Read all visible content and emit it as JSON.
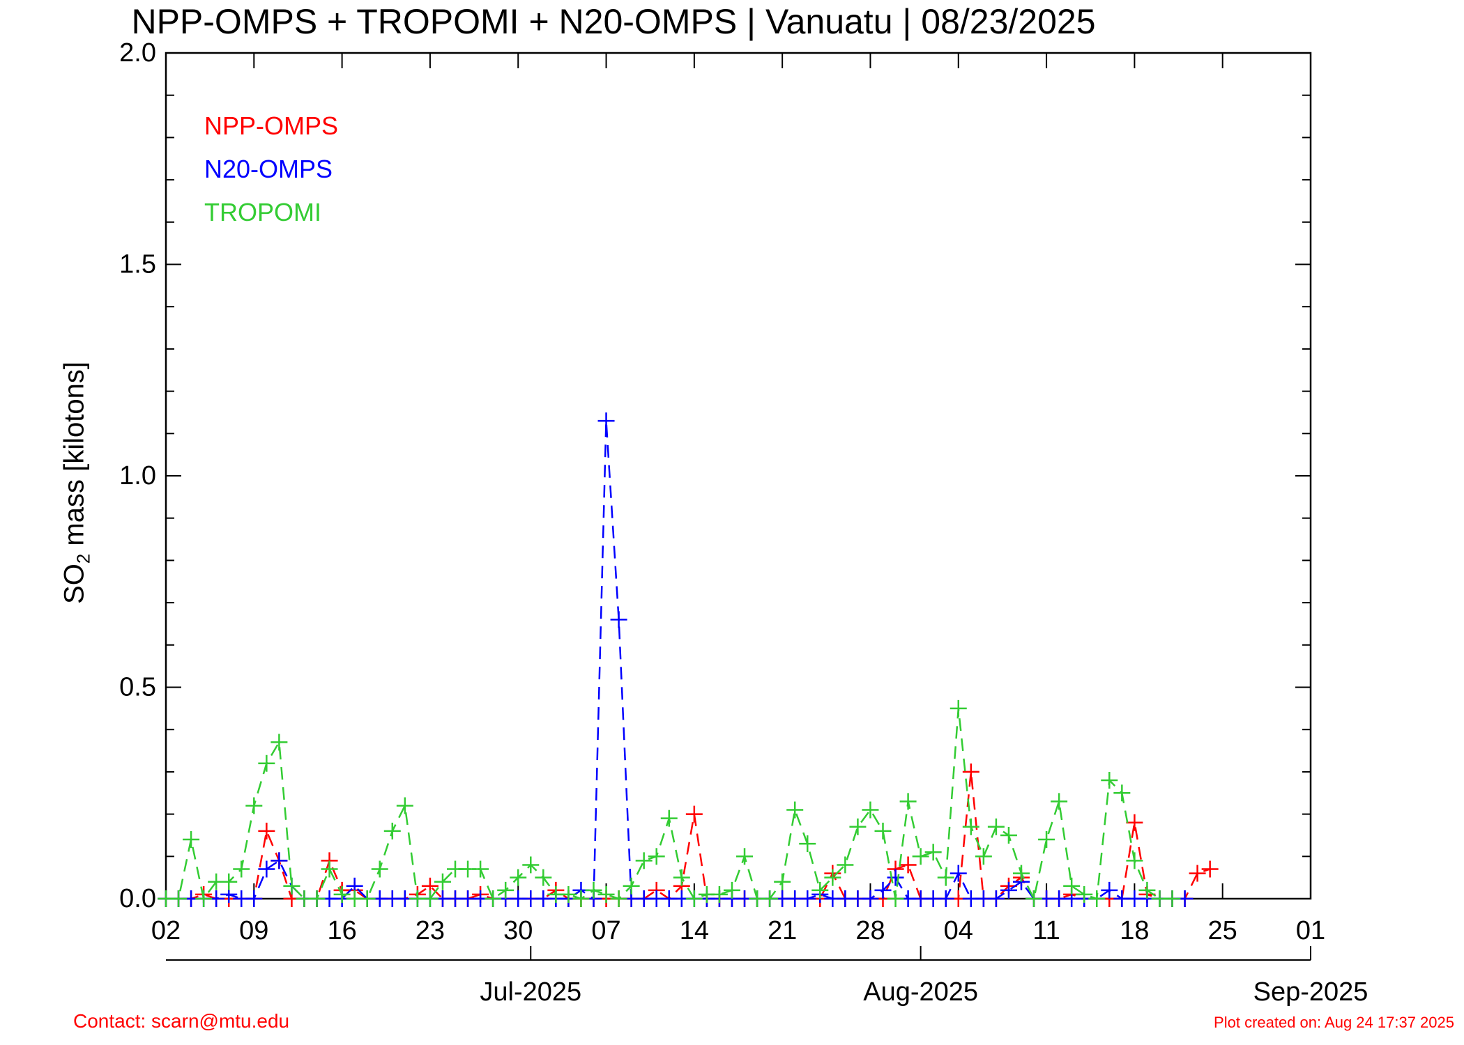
{
  "title": "NPP-OMPS + TROPOMI + N20-OMPS | Vanuatu | 08/23/2025",
  "footer": {
    "contact": "Contact: scarn@mtu.edu",
    "created": "Plot created on: Aug 24 17:37 2025"
  },
  "chart_data": {
    "type": "line",
    "title": "NPP-OMPS + TROPOMI + N20-OMPS | Vanuatu | 08/23/2025",
    "ylabel_main": "SO",
    "ylabel_sub": "2",
    "ylabel_rest": " mass [kilotons]",
    "xlim": [
      "2025-06-02",
      "2025-09-01"
    ],
    "ylim": [
      0,
      2.0
    ],
    "x_day_ticks": [
      "02",
      "09",
      "16",
      "23",
      "30",
      "07",
      "14",
      "21",
      "28",
      "04",
      "11",
      "18",
      "25",
      "01"
    ],
    "x_month_labels": [
      {
        "label": "Jul-2025",
        "date": "2025-07-01"
      },
      {
        "label": "Aug-2025",
        "date": "2025-08-01"
      },
      {
        "label": "Sep-2025",
        "date": "2025-09-01"
      }
    ],
    "y_tick_labels": [
      "0.0",
      "0.5",
      "1.0",
      "1.5",
      "2.0"
    ],
    "y_ticks": [
      0,
      0.5,
      1.0,
      1.5,
      2.0
    ],
    "legend_position": "top-left",
    "line_style": "dashed",
    "marker": "plus",
    "series": [
      {
        "name": "NPP-OMPS",
        "color": "#ff0000",
        "x": [
          "2025-06-02",
          "2025-06-03",
          "2025-06-04",
          "2025-06-05",
          "2025-06-06",
          "2025-06-07",
          "2025-06-08",
          "2025-06-09",
          "2025-06-10",
          "2025-06-11",
          "2025-06-12",
          "2025-06-13",
          "2025-06-14",
          "2025-06-15",
          "2025-06-16",
          "2025-06-17",
          "2025-06-18",
          "2025-06-19",
          "2025-06-20",
          "2025-06-21",
          "2025-06-22",
          "2025-06-23",
          "2025-06-24",
          "2025-06-25",
          "2025-06-26",
          "2025-06-27",
          "2025-06-28",
          "2025-06-29",
          "2025-06-30",
          "2025-07-01",
          "2025-07-02",
          "2025-07-03",
          "2025-07-04",
          "2025-07-05",
          "2025-07-06",
          "2025-07-07",
          "2025-07-08",
          "2025-07-09",
          "2025-07-10",
          "2025-07-11",
          "2025-07-12",
          "2025-07-13",
          "2025-07-14",
          "2025-07-15",
          "2025-07-16",
          "2025-07-17",
          "2025-07-18",
          "2025-07-19",
          "2025-07-20",
          "2025-07-21",
          "2025-07-22",
          "2025-07-23",
          "2025-07-24",
          "2025-07-25",
          "2025-07-26",
          "2025-07-27",
          "2025-07-28",
          "2025-07-29",
          "2025-07-30",
          "2025-07-31",
          "2025-08-01",
          "2025-08-02",
          "2025-08-03",
          "2025-08-04",
          "2025-08-05",
          "2025-08-06",
          "2025-08-07",
          "2025-08-08",
          "2025-08-09",
          "2025-08-10",
          "2025-08-11",
          "2025-08-12",
          "2025-08-13",
          "2025-08-14",
          "2025-08-15",
          "2025-08-16",
          "2025-08-17",
          "2025-08-18",
          "2025-08-19",
          "2025-08-20",
          "2025-08-21",
          "2025-08-22",
          "2025-08-23",
          "2025-08-24"
        ],
        "y": [
          0,
          0,
          0,
          0.01,
          0,
          0,
          0,
          0,
          0.16,
          0.09,
          0,
          0,
          0,
          0.09,
          0.02,
          0.02,
          0,
          0,
          0,
          0,
          0.01,
          0.03,
          0,
          0,
          0,
          0.01,
          0,
          0,
          0,
          0,
          0,
          0.02,
          0,
          0,
          0,
          0,
          0,
          0,
          0,
          0.02,
          0,
          0.03,
          0.2,
          0,
          0,
          0,
          0,
          0,
          0,
          0,
          0,
          0,
          0,
          0.06,
          0,
          0,
          0,
          0,
          0.07,
          0.08,
          0,
          0,
          0,
          0,
          0.3,
          0,
          0,
          0.03,
          0.05,
          0,
          0,
          0,
          0.01,
          0,
          0,
          0,
          0,
          0.18,
          0.01,
          0,
          0,
          0,
          0.06,
          0.07
        ]
      },
      {
        "name": "N20-OMPS",
        "color": "#0000ff",
        "x": [
          "2025-06-02",
          "2025-06-03",
          "2025-06-04",
          "2025-06-05",
          "2025-06-06",
          "2025-06-07",
          "2025-06-08",
          "2025-06-09",
          "2025-06-10",
          "2025-06-11",
          "2025-06-12",
          "2025-06-13",
          "2025-06-14",
          "2025-06-15",
          "2025-06-16",
          "2025-06-17",
          "2025-06-18",
          "2025-06-19",
          "2025-06-20",
          "2025-06-21",
          "2025-06-22",
          "2025-06-23",
          "2025-06-24",
          "2025-06-25",
          "2025-06-26",
          "2025-06-27",
          "2025-06-28",
          "2025-06-29",
          "2025-06-30",
          "2025-07-01",
          "2025-07-02",
          "2025-07-03",
          "2025-07-04",
          "2025-07-05",
          "2025-07-06",
          "2025-07-07",
          "2025-07-08",
          "2025-07-09",
          "2025-07-10",
          "2025-07-11",
          "2025-07-12",
          "2025-07-13",
          "2025-07-14",
          "2025-07-15",
          "2025-07-16",
          "2025-07-17",
          "2025-07-18",
          "2025-07-19",
          "2025-07-20",
          "2025-07-21",
          "2025-07-22",
          "2025-07-23",
          "2025-07-24",
          "2025-07-25",
          "2025-07-26",
          "2025-07-27",
          "2025-07-28",
          "2025-07-29",
          "2025-07-30",
          "2025-07-31",
          "2025-08-01",
          "2025-08-02",
          "2025-08-03",
          "2025-08-04",
          "2025-08-05",
          "2025-08-06",
          "2025-08-07",
          "2025-08-08",
          "2025-08-09",
          "2025-08-10",
          "2025-08-11",
          "2025-08-12",
          "2025-08-13",
          "2025-08-14",
          "2025-08-15",
          "2025-08-16",
          "2025-08-17",
          "2025-08-18",
          "2025-08-19",
          "2025-08-20",
          "2025-08-21",
          "2025-08-22"
        ],
        "y": [
          0,
          0,
          0,
          0,
          0,
          0.01,
          0,
          0,
          0.07,
          0.09,
          0.03,
          0,
          0,
          0,
          0,
          0.03,
          0,
          0,
          0,
          0,
          0,
          0,
          0,
          0,
          0,
          0,
          0,
          0,
          0,
          0,
          0,
          0,
          0,
          0.02,
          0,
          1.13,
          0.66,
          0,
          0,
          0,
          0,
          0,
          0,
          0,
          0,
          0,
          0,
          0,
          0,
          0,
          0,
          0,
          0.01,
          0,
          0,
          0,
          0,
          0.02,
          0.05,
          0,
          0,
          0,
          0,
          0.06,
          0,
          0,
          0,
          0.02,
          0.04,
          0,
          0,
          0,
          0,
          0,
          0,
          0.02,
          0,
          0,
          0,
          0,
          0,
          0
        ]
      },
      {
        "name": "TROPOMI",
        "color": "#33cc33",
        "x": [
          "2025-06-02",
          "2025-06-03",
          "2025-06-04",
          "2025-06-05",
          "2025-06-06",
          "2025-06-07",
          "2025-06-08",
          "2025-06-09",
          "2025-06-10",
          "2025-06-11",
          "2025-06-12",
          "2025-06-13",
          "2025-06-14",
          "2025-06-15",
          "2025-06-16",
          "2025-06-17",
          "2025-06-18",
          "2025-06-19",
          "2025-06-20",
          "2025-06-21",
          "2025-06-22",
          "2025-06-23",
          "2025-06-24",
          "2025-06-25",
          "2025-06-26",
          "2025-06-27",
          "2025-06-28",
          "2025-06-29",
          "2025-06-30",
          "2025-07-01",
          "2025-07-02",
          "2025-07-03",
          "2025-07-04",
          "2025-07-05",
          "2025-07-06",
          "2025-07-07",
          "2025-07-08",
          "2025-07-09",
          "2025-07-10",
          "2025-07-11",
          "2025-07-12",
          "2025-07-13",
          "2025-07-14",
          "2025-07-15",
          "2025-07-16",
          "2025-07-17",
          "2025-07-18",
          "2025-07-19",
          "2025-07-20",
          "2025-07-21",
          "2025-07-22",
          "2025-07-23",
          "2025-07-24",
          "2025-07-25",
          "2025-07-26",
          "2025-07-27",
          "2025-07-28",
          "2025-07-29",
          "2025-07-30",
          "2025-07-31",
          "2025-08-01",
          "2025-08-02",
          "2025-08-03",
          "2025-08-04",
          "2025-08-05",
          "2025-08-06",
          "2025-08-07",
          "2025-08-08",
          "2025-08-09",
          "2025-08-10",
          "2025-08-11",
          "2025-08-12",
          "2025-08-13",
          "2025-08-14",
          "2025-08-15",
          "2025-08-16",
          "2025-08-17",
          "2025-08-18",
          "2025-08-19",
          "2025-08-20",
          "2025-08-21"
        ],
        "y": [
          0,
          0,
          0.14,
          0,
          0.04,
          0.04,
          0.07,
          0.22,
          0.32,
          0.37,
          0.03,
          0,
          0,
          0.07,
          0.01,
          0,
          0,
          0.07,
          0.16,
          0.22,
          0,
          0,
          0.04,
          0.07,
          0.07,
          0.07,
          0,
          0.02,
          0.05,
          0.08,
          0.05,
          0.01,
          0.01,
          0,
          0.02,
          0.01,
          0,
          0.03,
          0.09,
          0.1,
          0.19,
          0.05,
          0,
          0.01,
          0.01,
          0.02,
          0.1,
          0,
          0,
          0.04,
          0.21,
          0.13,
          0.02,
          0.05,
          0.08,
          0.17,
          0.21,
          0.16,
          0,
          0.23,
          0.1,
          0.11,
          0.05,
          0.45,
          0.17,
          0.1,
          0.17,
          0.15,
          0.06,
          0,
          0.14,
          0.23,
          0.03,
          0.01,
          0,
          0.28,
          0.25,
          0.09,
          0.02,
          0,
          0
        ]
      }
    ]
  }
}
